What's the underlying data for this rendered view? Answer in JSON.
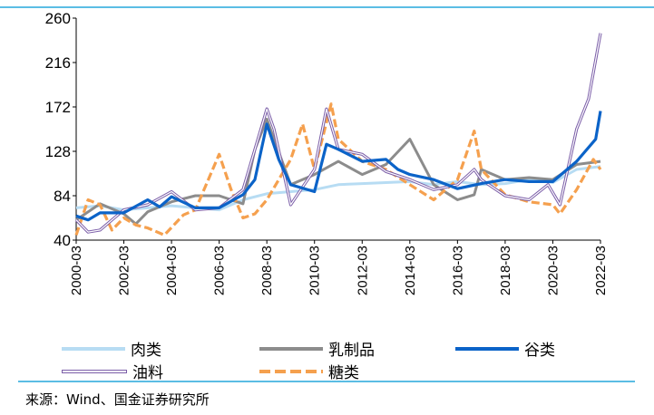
{
  "chart_data": {
    "type": "line",
    "title": "",
    "xlabel": "",
    "ylabel": "",
    "ylim": [
      40,
      260
    ],
    "yticks": [
      "40",
      "84",
      "128",
      "172",
      "216",
      "260"
    ],
    "xlim": [
      2000,
      2022
    ],
    "xticks": [
      "2000-03",
      "2002-03",
      "2004-03",
      "2006-03",
      "2008-03",
      "2010-03",
      "2012-03",
      "2014-03",
      "2016-03",
      "2018-03",
      "2020-03",
      "2022-03"
    ],
    "legend_position": "bottom",
    "series": [
      {
        "name": "肉类",
        "color": "#b7dcf3",
        "style": "solid",
        "x": [
          2000,
          2001,
          2002,
          2003,
          2004,
          2005,
          2006,
          2007,
          2008,
          2009,
          2010,
          2011,
          2012,
          2013,
          2014,
          2015,
          2016,
          2017,
          2018,
          2019,
          2020,
          2021,
          2022
        ],
        "y": [
          72,
          74,
          70,
          72,
          74,
          72,
          70,
          80,
          86,
          88,
          90,
          95,
          96,
          97,
          98,
          95,
          98,
          95,
          96,
          100,
          97,
          110,
          113
        ]
      },
      {
        "name": "乳制品",
        "color": "#8c8c8c",
        "style": "solid",
        "x": [
          2000,
          2001,
          2002,
          2002.5,
          2003,
          2004,
          2005,
          2006,
          2007,
          2007.5,
          2008,
          2008.3,
          2009,
          2010,
          2011,
          2012,
          2013,
          2014,
          2015,
          2016,
          2016.7,
          2017,
          2018,
          2019,
          2020,
          2021,
          2022
        ],
        "y": [
          60,
          76,
          66,
          56,
          68,
          78,
          84,
          84,
          76,
          130,
          160,
          140,
          95,
          105,
          118,
          105,
          115,
          140,
          95,
          80,
          85,
          110,
          100,
          102,
          100,
          115,
          118
        ]
      },
      {
        "name": "谷类",
        "color": "#0b63c8",
        "style": "thick",
        "x": [
          2000,
          2000.5,
          2001,
          2002,
          2003,
          2003.5,
          2004,
          2005,
          2006,
          2007,
          2007.5,
          2008,
          2008.5,
          2009,
          2010,
          2010.5,
          2011,
          2012,
          2013,
          2013.5,
          2014,
          2015,
          2016,
          2017,
          2018,
          2019,
          2020,
          2021,
          2021.8,
          2022
        ],
        "y": [
          64,
          60,
          67,
          67,
          80,
          73,
          83,
          72,
          72,
          85,
          100,
          155,
          120,
          95,
          88,
          135,
          130,
          118,
          120,
          110,
          105,
          100,
          91,
          96,
          100,
          98,
          98,
          118,
          140,
          168
        ]
      },
      {
        "name": "油料",
        "color": "#7b5ea8",
        "style": "double",
        "x": [
          2000,
          2000.5,
          2001,
          2002,
          2003,
          2004,
          2005,
          2006,
          2007,
          2008,
          2008.3,
          2009,
          2010,
          2010.5,
          2011,
          2012,
          2013,
          2014,
          2015,
          2016,
          2016.7,
          2017,
          2018,
          2019,
          2019.8,
          2020.3,
          2021,
          2021.5,
          2022
        ],
        "y": [
          60,
          48,
          50,
          70,
          75,
          88,
          70,
          72,
          90,
          170,
          150,
          75,
          110,
          170,
          130,
          125,
          108,
          100,
          90,
          95,
          110,
          100,
          84,
          80,
          95,
          75,
          150,
          180,
          245
        ]
      },
      {
        "name": "糖类",
        "color": "#f5a04e",
        "style": "dashed",
        "x": [
          2000,
          2000.5,
          2001,
          2001.5,
          2002,
          2002.5,
          2003,
          2003.7,
          2004.5,
          2005,
          2006,
          2006.5,
          2007,
          2007.5,
          2008,
          2009,
          2009.5,
          2010,
          2010.7,
          2011,
          2012,
          2013,
          2014,
          2015,
          2016,
          2016.7,
          2017,
          2018,
          2019,
          2020,
          2020.3,
          2021,
          2021.7,
          2022
        ],
        "y": [
          45,
          80,
          75,
          50,
          62,
          55,
          52,
          45,
          65,
          70,
          125,
          90,
          62,
          66,
          80,
          120,
          155,
          110,
          175,
          140,
          118,
          110,
          95,
          80,
          100,
          148,
          110,
          85,
          78,
          75,
          66,
          90,
          120,
          110
        ]
      }
    ]
  },
  "source": "来源：Wind、国金证券研究所"
}
